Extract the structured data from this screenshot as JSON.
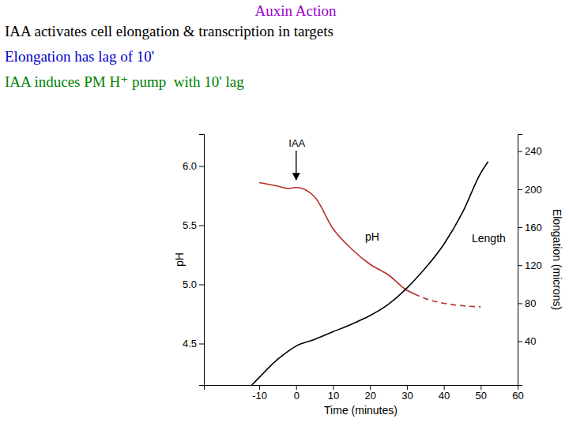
{
  "header": {
    "title": "Auxin Action",
    "lines": [
      "IAA activates cell elongation & transcription in targets",
      "Elongation has lag of 10'",
      "IAA induces PM H⁺ pump  with 10' lag"
    ]
  },
  "chart_data": {
    "type": "line",
    "xlabel": "Time (minutes)",
    "ylabel": "pH",
    "y2label": "Elongation (microns)",
    "x": [
      -12,
      -10,
      -5,
      -2,
      0,
      5,
      10,
      15,
      20,
      25,
      30,
      32,
      35,
      40,
      45,
      50,
      52
    ],
    "series": [
      {
        "name": "pH",
        "color": "#b5302c",
        "axis": "y",
        "line_style": "solid",
        "values": [
          null,
          5.86,
          5.83,
          5.81,
          5.82,
          5.74,
          5.47,
          5.3,
          5.17,
          5.08,
          4.95,
          4.92,
          null,
          null,
          null,
          null,
          null
        ]
      },
      {
        "color": "#b5302c",
        "axis": "y",
        "line_style": "dashed",
        "values": [
          null,
          null,
          null,
          null,
          null,
          null,
          null,
          null,
          null,
          null,
          null,
          4.92,
          4.88,
          4.84,
          4.82,
          4.81,
          null
        ]
      },
      {
        "name": "Length",
        "color": "#000000",
        "axis": "y2",
        "line_style": "solid",
        "values": [
          -6,
          2,
          21,
          30,
          35,
          42,
          50,
          58,
          67,
          79,
          96,
          104,
          117,
          142,
          175,
          217,
          229
        ]
      }
    ],
    "xlim": [
      -25,
      60
    ],
    "xticks": [
      -10,
      0,
      10,
      20,
      30,
      40,
      50,
      60
    ],
    "ylim": [
      4.15,
      6.27
    ],
    "yticks": [
      4.5,
      {
        "value": 5,
        "label": "5.0"
      },
      5.5,
      {
        "value": 6,
        "label": "6.0"
      }
    ],
    "y2lim": [
      -6,
      258
    ],
    "y2ticks": [
      40,
      80,
      120,
      160,
      200,
      240
    ],
    "annotations": [
      {
        "text": "IAA",
        "x": 0
      }
    ],
    "grid": false
  }
}
